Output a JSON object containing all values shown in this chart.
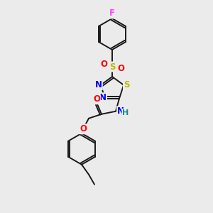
{
  "background_color": "#ebebeb",
  "bond_color": "#1a1a1a",
  "atoms": {
    "F": {
      "color": "#ff44ff",
      "fontsize": 8.5
    },
    "O": {
      "color": "#ff0000",
      "fontsize": 8.5
    },
    "N": {
      "color": "#0000ee",
      "fontsize": 8.5
    },
    "S_thiadiazole": {
      "color": "#bbbb00",
      "fontsize": 8.5
    },
    "S_sulfonyl": {
      "color": "#bbbb00",
      "fontsize": 8.5
    },
    "NH": {
      "color": "#0000ee",
      "fontsize": 8.5
    },
    "H": {
      "color": "#009090",
      "fontsize": 8.5
    }
  },
  "scale": 1.0
}
